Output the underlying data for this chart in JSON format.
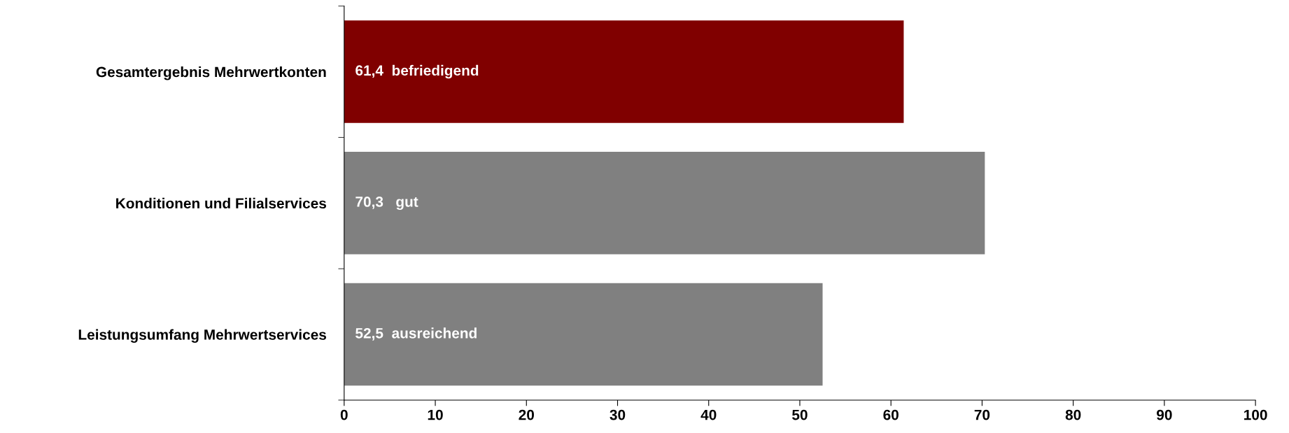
{
  "chart_data": {
    "type": "bar",
    "orientation": "horizontal",
    "categories": [
      "Gesamtergebnis Mehrwertkonten",
      "Konditionen und Filialservices",
      "Leistungsumfang Mehrwertservices"
    ],
    "values": [
      61.4,
      70.3,
      52.5
    ],
    "colors": [
      "#800000",
      "#808080",
      "#808080"
    ],
    "value_labels": [
      "61,4  befriedigend",
      "70,3   gut",
      "52,5  ausreichend"
    ],
    "xlim": [
      0,
      100
    ],
    "xticks": [
      0,
      10,
      20,
      30,
      40,
      50,
      60,
      70,
      80,
      90,
      100
    ],
    "grid": false,
    "legend": false
  }
}
